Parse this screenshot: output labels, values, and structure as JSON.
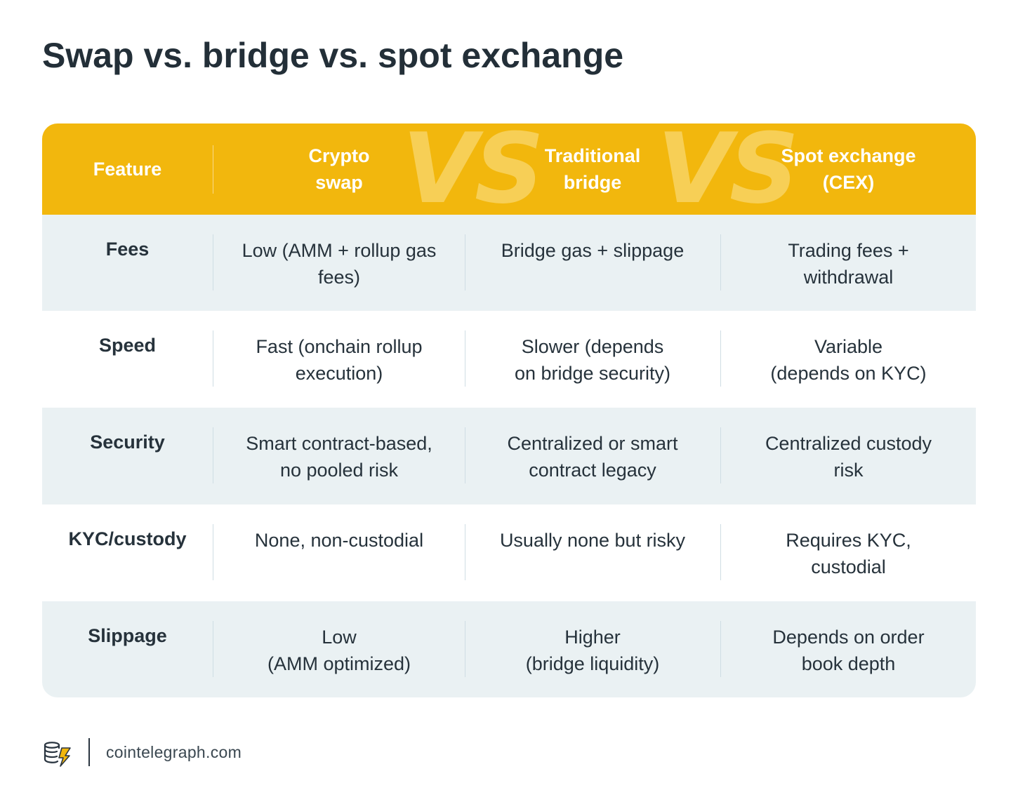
{
  "title": "Swap vs. bridge vs. spot exchange",
  "header": {
    "feature": "Feature",
    "col1": [
      "Crypto",
      "swap"
    ],
    "col2": [
      "Traditional",
      "bridge"
    ],
    "col3": [
      "Spot exchange",
      "(CEX)"
    ],
    "vs_watermark": "VS"
  },
  "rows": [
    {
      "label": "Fees",
      "c1": [
        "Low (AMM + rollup gas",
        "fees)"
      ],
      "c2": [
        "Bridge gas + slippage"
      ],
      "c3": [
        "Trading fees +",
        "withdrawal"
      ]
    },
    {
      "label": "Speed",
      "c1": [
        "Fast (onchain rollup",
        "execution)"
      ],
      "c2": [
        "Slower (depends",
        "on bridge security)"
      ],
      "c3": [
        "Variable",
        "(depends on KYC)"
      ]
    },
    {
      "label": "Security",
      "c1": [
        "Smart contract-based,",
        "no pooled risk"
      ],
      "c2": [
        "Centralized or smart",
        "contract legacy"
      ],
      "c3": [
        "Centralized custody",
        "risk"
      ]
    },
    {
      "label": "KYC/custody",
      "c1": [
        "None, non-custodial"
      ],
      "c2": [
        "Usually none but risky"
      ],
      "c3": [
        "Requires KYC,",
        "custodial"
      ]
    },
    {
      "label": "Slippage",
      "c1": [
        "Low",
        "(AMM optimized)"
      ],
      "c2": [
        "Higher",
        "(bridge liquidity)"
      ],
      "c3": [
        "Depends on order",
        "book depth"
      ]
    }
  ],
  "footer": {
    "site": "cointelegraph.com",
    "logo_icon": "cointelegraph-coins-lightning-icon"
  },
  "colors": {
    "header_bg": "#f2b70d",
    "shaded_row_bg": "#eaf1f3",
    "text": "#26323b"
  }
}
